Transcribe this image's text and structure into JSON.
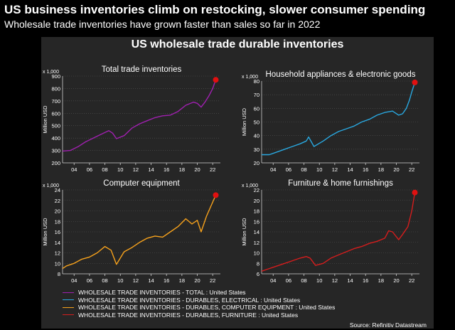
{
  "headline": "US business inventories climb on restocking, slower consumer spending",
  "subheadline": "Wholesale trade inventories have grown faster than sales so far in 2022",
  "panel_title": "US wholesale trade durable inventories",
  "source": "Source: Refinitiv Datastream",
  "legend": [
    {
      "label": "WHOLESALE TRADE INVENTORIES - TOTAL : United States",
      "color": "#a020b0"
    },
    {
      "label": "WHOLESALE TRADE INVENTORIES - DURABLES, ELECTRICAL : United States",
      "color": "#29a8e0"
    },
    {
      "label": "WHOLESALE TRADE INVENTORIES - DURABLES, COMPUTER EQUIPMENT : United States",
      "color": "#f7a21c"
    },
    {
      "label": "WHOLESALE TRADE INVENTORIES - DURABLES, FURNITURE : United States",
      "color": "#d51d1d"
    }
  ],
  "chart_data": [
    {
      "type": "line",
      "title": "Total trade inventories",
      "scale_note": "x 1,000",
      "ylabel": "Million USD",
      "xlabel": "",
      "color": "#a020b0",
      "marker_color": "#e01010",
      "ylim": [
        200,
        900
      ],
      "yticks": [
        200,
        300,
        400,
        500,
        600,
        700,
        800,
        900
      ],
      "xlim": [
        2002.5,
        2023.0
      ],
      "xticks": [
        2004,
        2006,
        2008,
        2010,
        2012,
        2014,
        2016,
        2018,
        2020,
        2022
      ],
      "xtick_labels": [
        "04",
        "06",
        "08",
        "10",
        "12",
        "14",
        "16",
        "18",
        "20",
        "22"
      ],
      "x": [
        2002.5,
        2003.5,
        2004.5,
        2005.5,
        2006.5,
        2007.5,
        2008.5,
        2009.0,
        2009.5,
        2010.5,
        2011.5,
        2012.5,
        2013.5,
        2014.5,
        2015.5,
        2016.5,
        2017.5,
        2018.5,
        2019.5,
        2020.0,
        2020.5,
        2021.0,
        2021.5,
        2022.0,
        2022.4
      ],
      "y": [
        295,
        300,
        330,
        370,
        400,
        430,
        460,
        440,
        395,
        420,
        480,
        515,
        540,
        565,
        580,
        585,
        615,
        665,
        690,
        680,
        650,
        690,
        740,
        800,
        870
      ]
    },
    {
      "type": "line",
      "title": "Household appliances & electronic goods",
      "scale_note": "x 1,000",
      "ylabel": "Million USD",
      "xlabel": "",
      "color": "#29a8e0",
      "marker_color": "#e01010",
      "ylim": [
        20,
        80
      ],
      "yticks": [
        20,
        30,
        40,
        50,
        60,
        70,
        80
      ],
      "xlim": [
        2002.5,
        2023.0
      ],
      "xticks": [
        2004,
        2006,
        2008,
        2010,
        2012,
        2014,
        2016,
        2018,
        2020,
        2022
      ],
      "xtick_labels": [
        "04",
        "06",
        "08",
        "10",
        "12",
        "14",
        "16",
        "18",
        "20",
        "22"
      ],
      "x": [
        2002.5,
        2003.5,
        2004.5,
        2005.5,
        2006.5,
        2007.5,
        2008.3,
        2008.6,
        2009.3,
        2010.5,
        2011.5,
        2012.5,
        2013.5,
        2014.5,
        2015.5,
        2016.5,
        2017.5,
        2018.5,
        2019.5,
        2020.3,
        2020.8,
        2021.3,
        2021.7,
        2022.0,
        2022.4
      ],
      "y": [
        26,
        26,
        28,
        30,
        32,
        34,
        36,
        39,
        32,
        36,
        40,
        43,
        45,
        47,
        50,
        52,
        55,
        57,
        58,
        55,
        56,
        60,
        66,
        72,
        79
      ]
    },
    {
      "type": "line",
      "title": "Computer equipment",
      "scale_note": "x 1,000",
      "ylabel": "Million USD",
      "xlabel": "",
      "color": "#f7a21c",
      "marker_color": "#e01010",
      "ylim": [
        8,
        24
      ],
      "yticks": [
        8,
        10,
        12,
        14,
        16,
        18,
        20,
        22,
        24
      ],
      "xlim": [
        2002.5,
        2023.0
      ],
      "xticks": [
        2004,
        2006,
        2008,
        2010,
        2012,
        2014,
        2016,
        2018,
        2020,
        2022
      ],
      "xtick_labels": [
        "04",
        "06",
        "08",
        "10",
        "12",
        "14",
        "16",
        "18",
        "20",
        "22"
      ],
      "x": [
        2002.5,
        2003.0,
        2004.0,
        2005.0,
        2006.0,
        2007.0,
        2008.0,
        2008.8,
        2009.5,
        2010.5,
        2011.5,
        2012.5,
        2013.5,
        2014.5,
        2015.5,
        2016.5,
        2017.5,
        2018.5,
        2019.3,
        2020.0,
        2020.5,
        2021.2,
        2021.8,
        2022.4
      ],
      "y": [
        9.0,
        9.5,
        10.0,
        10.8,
        11.2,
        12.0,
        13.2,
        12.5,
        9.8,
        12.2,
        13.0,
        14.0,
        14.8,
        15.2,
        15.0,
        16.0,
        17.0,
        18.5,
        17.5,
        18.2,
        16.0,
        19.0,
        21.0,
        23.0
      ]
    },
    {
      "type": "line",
      "title": "Furniture & home furnishings",
      "scale_note": "x 1,000",
      "ylabel": "Million USD",
      "xlabel": "",
      "color": "#d51d1d",
      "marker_color": "#e01010",
      "ylim": [
        6,
        22
      ],
      "yticks": [
        6,
        8,
        10,
        12,
        14,
        16,
        18,
        20,
        22
      ],
      "xlim": [
        2002.5,
        2023.0
      ],
      "xticks": [
        2004,
        2006,
        2008,
        2010,
        2012,
        2014,
        2016,
        2018,
        2020,
        2022
      ],
      "xtick_labels": [
        "04",
        "06",
        "08",
        "10",
        "12",
        "14",
        "16",
        "18",
        "20",
        "22"
      ],
      "x": [
        2002.5,
        2003.5,
        2004.5,
        2005.5,
        2006.5,
        2007.5,
        2008.3,
        2008.8,
        2009.5,
        2010.5,
        2011.5,
        2012.5,
        2013.5,
        2014.5,
        2015.5,
        2016.5,
        2017.5,
        2018.5,
        2019.0,
        2019.5,
        2020.3,
        2020.8,
        2021.5,
        2022.0,
        2022.4
      ],
      "y": [
        6.5,
        7.0,
        7.5,
        8.0,
        8.5,
        9.0,
        9.3,
        9.0,
        7.6,
        8.0,
        9.0,
        9.6,
        10.2,
        10.8,
        11.2,
        11.8,
        12.2,
        12.8,
        14.2,
        14.0,
        12.5,
        13.5,
        15.0,
        18.0,
        21.5
      ]
    }
  ]
}
